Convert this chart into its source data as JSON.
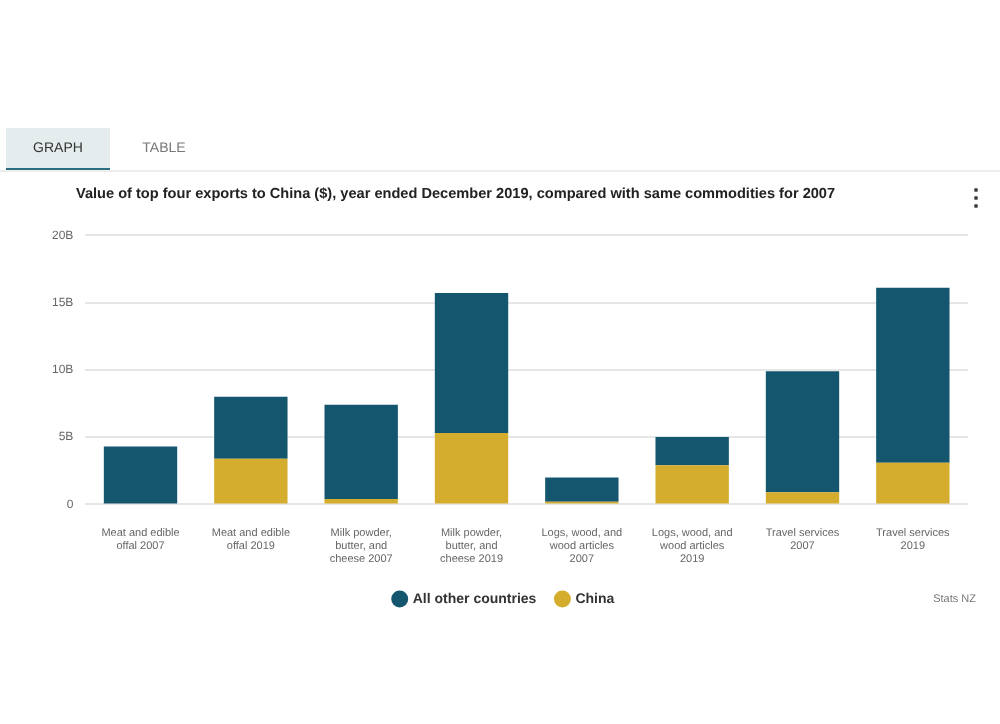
{
  "chart_data": {
    "type": "bar",
    "title": "Value of top four exports to China ($), year ended December 2019, compared with same commodities for 2007",
    "categories": [
      "Meat and edible offal 2007",
      "Meat and edible offal 2019",
      "Milk powder, butter, and cheese 2007",
      "Milk powder, butter, and cheese 2019",
      "Logs, wood, and wood articles 2007",
      "Logs, wood, and wood articles 2019",
      "Travel services 2007",
      "Travel services 2019"
    ],
    "stacked": true,
    "series": [
      {
        "name": "China",
        "color": "#d4ad2e",
        "values": [
          0,
          3.4,
          0.4,
          5.3,
          0.2,
          2.9,
          0.9,
          3.1
        ]
      },
      {
        "name": "All other countries",
        "color": "#14566e",
        "values": [
          4.3,
          4.6,
          7.0,
          10.4,
          1.8,
          2.1,
          9.0,
          13.0
        ]
      }
    ],
    "ylim": [
      0,
      20
    ],
    "yticks": [
      {
        "value": 0,
        "label": "0"
      },
      {
        "value": 5,
        "label": "5B"
      },
      {
        "value": 10,
        "label": "10B"
      },
      {
        "value": 15,
        "label": "15B"
      },
      {
        "value": 20,
        "label": "20B"
      }
    ],
    "grid": "y",
    "legend": "bottom",
    "annotations": [
      "GRAPH",
      "TABLE",
      "Stats NZ"
    ]
  }
}
